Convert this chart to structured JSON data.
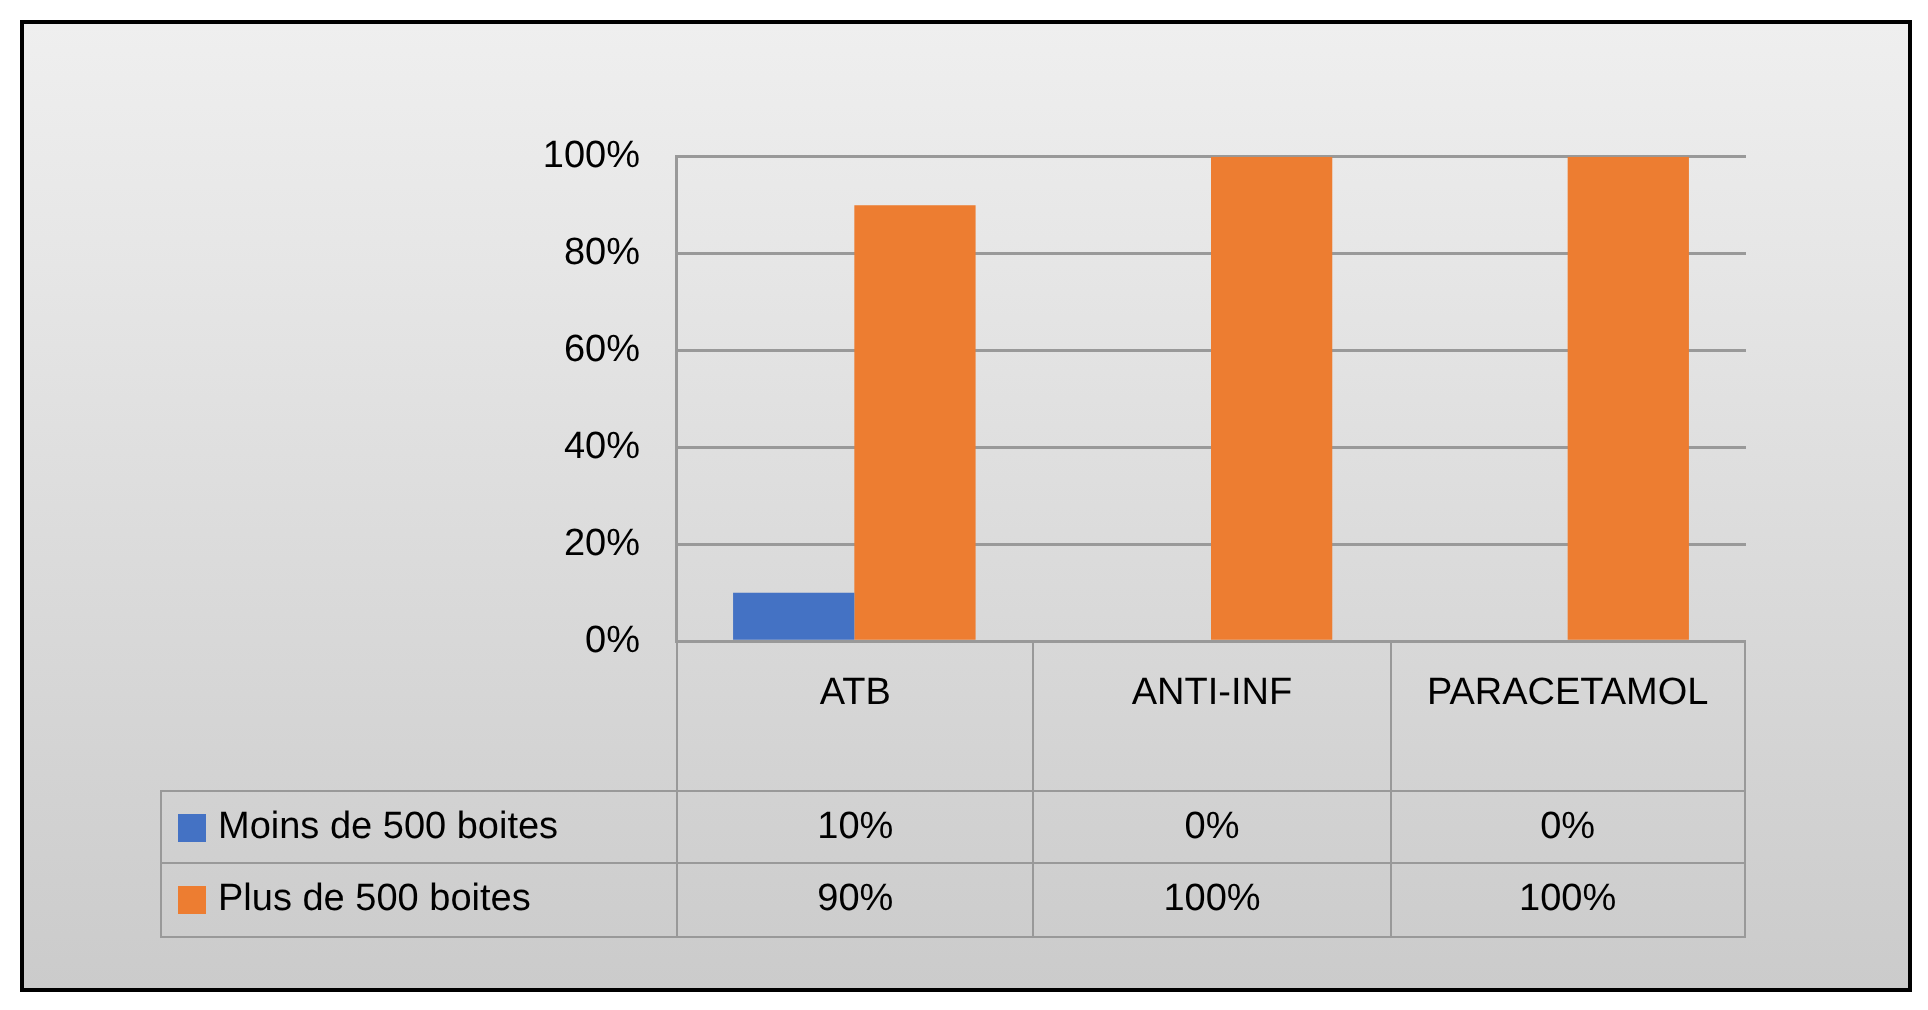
{
  "chart_data": {
    "type": "bar",
    "categories": [
      "ATB",
      "ANTI-INF",
      "PARACETAMOL"
    ],
    "series": [
      {
        "name": "Moins de 500 boites",
        "color": "#4472c4",
        "values": [
          10,
          0,
          0
        ],
        "value_labels": [
          "10%",
          "0%",
          "0%"
        ]
      },
      {
        "name": "Plus de 500 boites",
        "color": "#ed7d31",
        "values": [
          90,
          100,
          100
        ],
        "value_labels": [
          "90%",
          "100%",
          "100%"
        ]
      }
    ],
    "ylim": [
      0,
      100
    ],
    "yticks": [
      {
        "value": 0,
        "label": "0%"
      },
      {
        "value": 20,
        "label": "20%"
      },
      {
        "value": 40,
        "label": "40%"
      },
      {
        "value": 60,
        "label": "60%"
      },
      {
        "value": 80,
        "label": "80%"
      },
      {
        "value": 100,
        "label": "100%"
      }
    ],
    "grid": "y",
    "legend": "bottom"
  }
}
